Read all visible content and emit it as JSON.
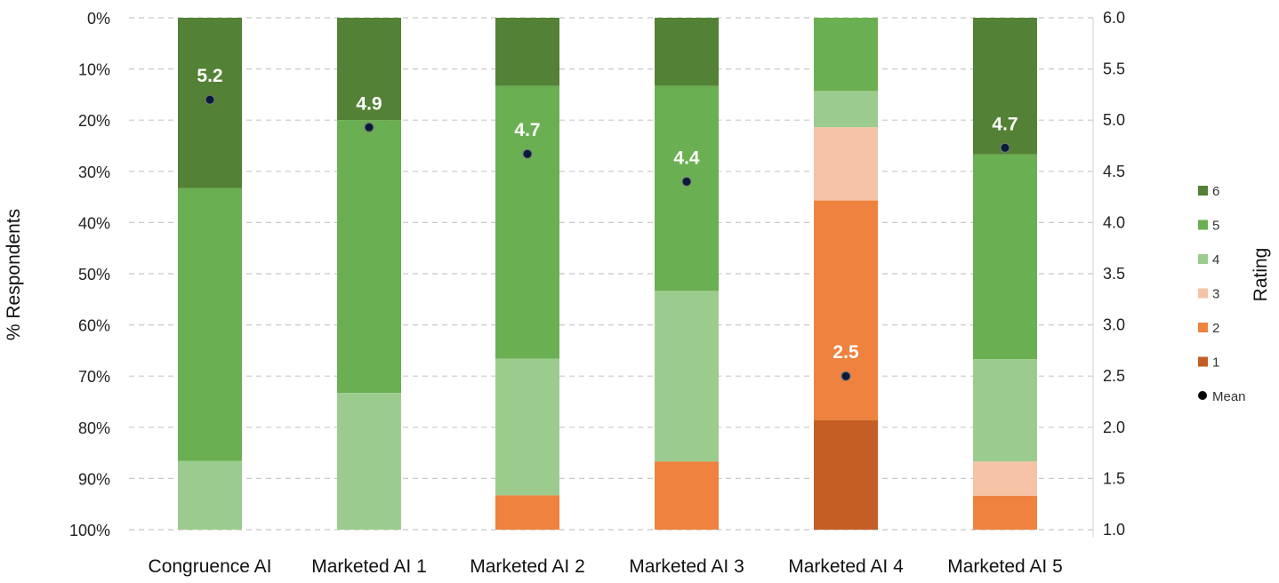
{
  "chart_data": {
    "type": "bar",
    "stacked": true,
    "categories": [
      "Congruence AI",
      "Marketed AI 1",
      "Marketed AI 2",
      "Marketed AI 3",
      "Marketed AI 4",
      "Marketed AI 5"
    ],
    "series": [
      {
        "name": "6",
        "color": "#538135",
        "values": [
          33.3,
          20.0,
          13.3,
          13.3,
          0.0,
          26.7
        ]
      },
      {
        "name": "5",
        "color": "#6aaf51",
        "values": [
          53.3,
          53.3,
          53.3,
          40.0,
          14.3,
          40.0
        ]
      },
      {
        "name": "4",
        "color": "#9ccc8d",
        "values": [
          13.4,
          26.7,
          26.7,
          33.4,
          7.1,
          20.0
        ]
      },
      {
        "name": "3",
        "color": "#f5c3a5",
        "values": [
          0.0,
          0.0,
          0.0,
          0.0,
          14.3,
          6.7
        ]
      },
      {
        "name": "2",
        "color": "#ee823e",
        "values": [
          0.0,
          0.0,
          6.7,
          13.3,
          42.9,
          6.6
        ]
      },
      {
        "name": "1",
        "color": "#c45e25",
        "values": [
          0.0,
          0.0,
          0.0,
          0.0,
          21.4,
          0.0
        ]
      }
    ],
    "mean": {
      "name": "Mean",
      "color": "#0a1a3a",
      "values": [
        5.2,
        4.93,
        4.67,
        4.4,
        2.5,
        4.73
      ],
      "labels": [
        "5.2",
        "4.9",
        "4.7",
        "4.4",
        "2.5",
        "4.7"
      ]
    },
    "left_axis": {
      "title": "% Respondents",
      "ticks": [
        "0%",
        "10%",
        "20%",
        "30%",
        "40%",
        "50%",
        "60%",
        "70%",
        "80%",
        "90%",
        "100%"
      ],
      "range": [
        0,
        100
      ],
      "reversed": true
    },
    "right_axis": {
      "title": "Rating",
      "ticks": [
        "6.0",
        "5.5",
        "5.0",
        "4.5",
        "4.0",
        "3.5",
        "3.0",
        "2.5",
        "2.0",
        "1.5",
        "1.0"
      ],
      "range": [
        1.0,
        6.0
      ]
    },
    "legend": {
      "position": "right",
      "entries": [
        "6",
        "5",
        "4",
        "3",
        "2",
        "1",
        "Mean"
      ]
    },
    "grid": true,
    "grid_color": "#c8c8c8"
  }
}
